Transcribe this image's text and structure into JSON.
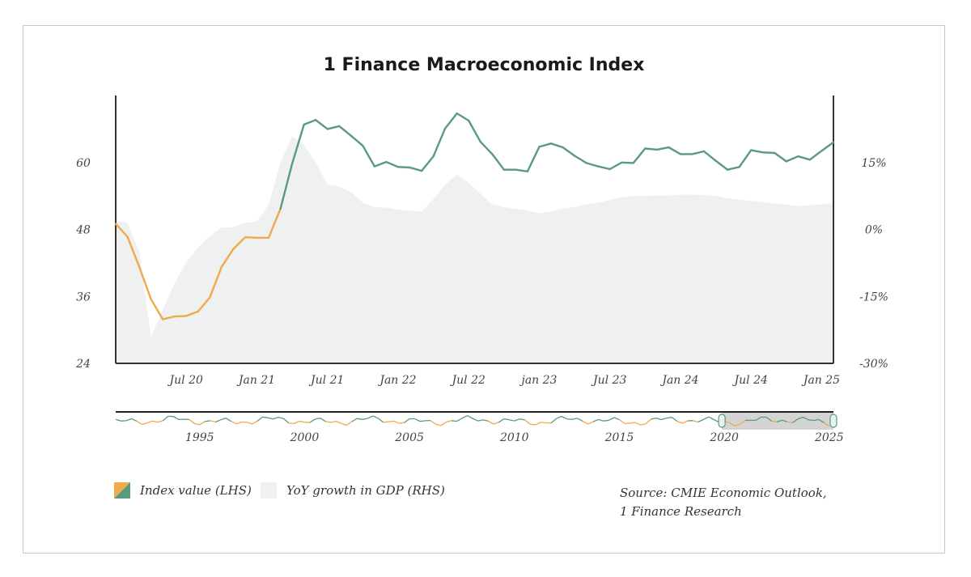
{
  "chart_data": {
    "type": "line",
    "title": "1 Finance Macroeconomic Index",
    "x_tick_labels": [
      "Jul 20",
      "Jan 21",
      "Jul 21",
      "Jan 22",
      "Jul 22",
      "jan 23",
      "Jul 23",
      "Jan 24",
      "Jul 24",
      "Jan 25"
    ],
    "y_left": {
      "ticks": [
        "60",
        "48",
        "36",
        "24"
      ],
      "ylim": [
        24,
        72
      ]
    },
    "y_right": {
      "ticks": [
        "15%",
        "0%",
        "-15%",
        "-30%"
      ],
      "ylim": [
        -30,
        30
      ]
    },
    "series": [
      {
        "name": "Index value (LHS)",
        "type": "line",
        "axis": "left",
        "colors": {
          "low": "#f0a94b",
          "high": "#5a9a7e"
        },
        "points": [
          [
            "2020-01",
            49
          ],
          [
            "2020-02",
            46.7
          ],
          [
            "2020-03",
            41.3
          ],
          [
            "2020-04",
            35.5
          ],
          [
            "2020-05",
            31.9
          ],
          [
            "2020-06",
            32.4
          ],
          [
            "2020-07",
            32.5
          ],
          [
            "2020-08",
            33.3
          ],
          [
            "2020-09",
            35.8
          ],
          [
            "2020-10",
            41.3
          ],
          [
            "2020-11",
            44.5
          ],
          [
            "2020-12",
            46.6
          ],
          [
            "2021-01",
            46.5
          ],
          [
            "2021-02",
            46.5
          ],
          [
            "2021-03",
            51.7
          ],
          [
            "2021-04",
            59.8
          ],
          [
            "2021-05",
            66.8
          ],
          [
            "2021-06",
            67.6
          ],
          [
            "2021-07",
            66
          ],
          [
            "2021-08",
            66.5
          ],
          [
            "2021-09",
            64.8
          ],
          [
            "2021-10",
            63
          ],
          [
            "2021-11",
            59.3
          ],
          [
            "2021-12",
            60.1
          ],
          [
            "2022-01",
            59.2
          ],
          [
            "2022-02",
            59.1
          ],
          [
            "2022-03",
            58.5
          ],
          [
            "2022-04",
            61.1
          ],
          [
            "2022-05",
            66.1
          ],
          [
            "2022-06",
            68.8
          ],
          [
            "2022-07",
            67.5
          ],
          [
            "2022-08",
            63.7
          ],
          [
            "2022-09",
            61.5
          ],
          [
            "2022-10",
            58.7
          ],
          [
            "2022-11",
            58.7
          ],
          [
            "2022-12",
            58.4
          ],
          [
            "2023-01",
            62.8
          ],
          [
            "2023-02",
            63.4
          ],
          [
            "2023-03",
            62.7
          ],
          [
            "2023-04",
            61.2
          ],
          [
            "2023-05",
            59.9
          ],
          [
            "2023-06",
            59.3
          ],
          [
            "2023-07",
            58.8
          ],
          [
            "2023-08",
            60
          ],
          [
            "2023-09",
            59.9
          ],
          [
            "2023-10",
            62.5
          ],
          [
            "2023-11",
            62.3
          ],
          [
            "2023-12",
            62.7
          ],
          [
            "2024-01",
            61.5
          ],
          [
            "2024-02",
            61.5
          ],
          [
            "2024-03",
            62
          ],
          [
            "2024-04",
            60.3
          ],
          [
            "2024-05",
            58.7
          ],
          [
            "2024-06",
            59.2
          ],
          [
            "2024-07",
            62.2
          ],
          [
            "2024-08",
            61.8
          ],
          [
            "2024-09",
            61.7
          ],
          [
            "2024-10",
            60.2
          ],
          [
            "2024-11",
            61.1
          ],
          [
            "2024-12",
            60.5
          ],
          [
            "2025-01",
            62.1
          ],
          [
            "2025-02",
            63.6
          ]
        ]
      },
      {
        "name": "YoY growth in GDP (RHS)",
        "type": "area",
        "axis": "right",
        "color": "#eef1ef",
        "points": [
          [
            "2020-01",
            2
          ],
          [
            "2020-02",
            1.5
          ],
          [
            "2020-03",
            -5
          ],
          [
            "2020-04",
            -24
          ],
          [
            "2020-05",
            -18
          ],
          [
            "2020-06",
            -12
          ],
          [
            "2020-07",
            -7.4
          ],
          [
            "2020-08",
            -4
          ],
          [
            "2020-09",
            -1.5
          ],
          [
            "2020-10",
            0.4
          ],
          [
            "2020-11",
            0.5
          ],
          [
            "2020-12",
            1.5
          ],
          [
            "2021-01",
            1.8
          ],
          [
            "2021-02",
            5.5
          ],
          [
            "2021-03",
            15
          ],
          [
            "2021-04",
            21
          ],
          [
            "2021-05",
            19
          ],
          [
            "2021-06",
            15
          ],
          [
            "2021-07",
            10
          ],
          [
            "2021-08",
            9.6
          ],
          [
            "2021-09",
            8.4
          ],
          [
            "2021-10",
            6
          ],
          [
            "2021-11",
            5
          ],
          [
            "2021-12",
            4.9
          ],
          [
            "2022-01",
            4.4
          ],
          [
            "2022-02",
            4.2
          ],
          [
            "2022-03",
            4
          ],
          [
            "2022-04",
            6.8
          ],
          [
            "2022-05",
            10
          ],
          [
            "2022-06",
            12.3
          ],
          [
            "2022-07",
            10.5
          ],
          [
            "2022-08",
            8
          ],
          [
            "2022-09",
            5.6
          ],
          [
            "2022-10",
            5
          ],
          [
            "2022-11",
            4.6
          ],
          [
            "2022-12",
            4.2
          ],
          [
            "2023-01",
            3.6
          ],
          [
            "2023-02",
            4
          ],
          [
            "2023-03",
            4.6
          ],
          [
            "2023-04",
            5
          ],
          [
            "2023-05",
            5.6
          ],
          [
            "2023-06",
            6
          ],
          [
            "2023-07",
            6.6
          ],
          [
            "2023-08",
            7.2
          ],
          [
            "2023-09",
            7.5
          ],
          [
            "2023-10",
            7.5
          ],
          [
            "2023-11",
            7.6
          ],
          [
            "2023-12",
            7.6
          ],
          [
            "2024-01",
            7.8
          ],
          [
            "2024-02",
            7.8
          ],
          [
            "2024-03",
            7.7
          ],
          [
            "2024-04",
            7.5
          ],
          [
            "2024-05",
            7
          ],
          [
            "2024-06",
            6.7
          ],
          [
            "2024-07",
            6.4
          ],
          [
            "2024-08",
            6.1
          ],
          [
            "2024-09",
            5.8
          ],
          [
            "2024-10",
            5.6
          ],
          [
            "2024-11",
            5.2
          ],
          [
            "2024-12",
            5.4
          ],
          [
            "2025-01",
            5.6
          ],
          [
            "2025-02",
            5.9
          ]
        ]
      }
    ],
    "navigator": {
      "tick_labels": [
        "1995",
        "2000",
        "2005",
        "2010",
        "2015",
        "2020",
        "2025"
      ],
      "range_selected": [
        "2020",
        "2025"
      ]
    },
    "legend": [
      {
        "label": "Index value (LHS)"
      },
      {
        "label": "YoY growth in GDP (RHS)"
      }
    ],
    "source_lines": [
      "Source: CMIE Economic Outlook,",
      "1 Finance Research"
    ],
    "grid": false,
    "legend_position": "bottom-left"
  },
  "colors": {
    "line_low": "#f0a94b",
    "line_high": "#5a9a7e",
    "area": "#eef1ef",
    "axis": "#333333",
    "navigator_mask": "#d4d4d4"
  }
}
